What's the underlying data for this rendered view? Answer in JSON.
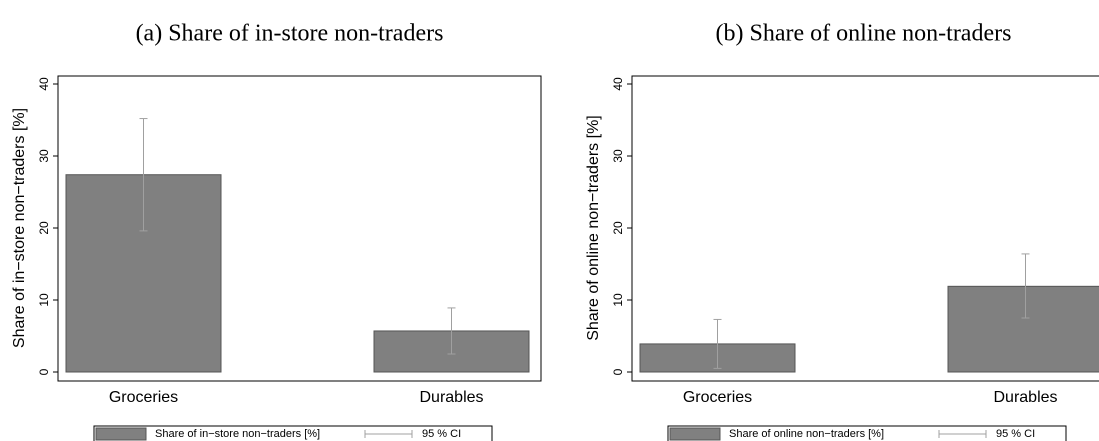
{
  "chart_data": [
    {
      "type": "bar",
      "title": "(a) Share of in-store non-traders",
      "y_label": "Share of in−store non−traders [%]",
      "categories": [
        "Groceries",
        "Durables"
      ],
      "values": [
        27.4,
        5.7
      ],
      "ci_low": [
        19.6,
        2.5
      ],
      "ci_high": [
        35.2,
        8.9
      ],
      "series_name": "Share of in−store non−traders [%]",
      "ci_name": "95 % CI",
      "color": "#808080",
      "ci_color": "#a0a0a0",
      "ylim": [
        0,
        40
      ],
      "yticks": [
        0,
        10,
        20,
        30,
        40
      ],
      "grid": false
    },
    {
      "type": "bar",
      "title": "(b) Share of online non-traders",
      "y_label": "Share of online non−traders [%]",
      "categories": [
        "Groceries",
        "Durables"
      ],
      "values": [
        3.9,
        11.9
      ],
      "ci_low": [
        0.5,
        7.5
      ],
      "ci_high": [
        7.3,
        16.4
      ],
      "series_name": "Share of online non−traders [%]",
      "ci_name": "95 % CI",
      "color": "#808080",
      "ci_color": "#a0a0a0",
      "ylim": [
        0,
        40
      ],
      "yticks": [
        0,
        10,
        20,
        30,
        40
      ],
      "grid": false
    }
  ]
}
